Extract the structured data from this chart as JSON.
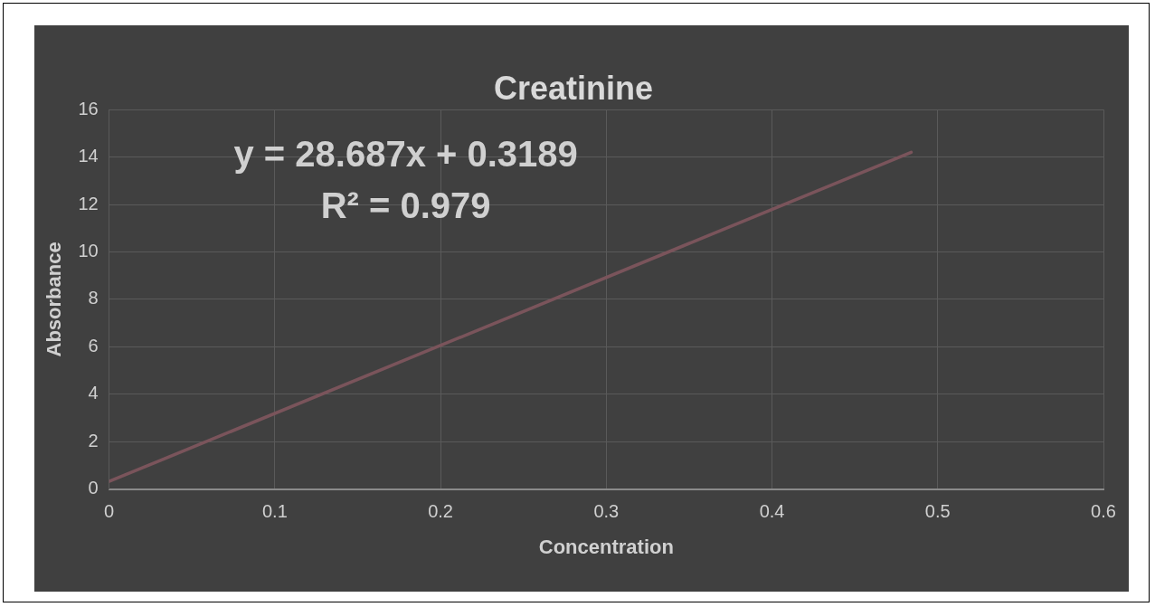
{
  "chart_data": {
    "type": "line",
    "title": "Creatinine",
    "xlabel": "Concentration",
    "ylabel": "Absorbance",
    "annotations": [
      "y = 28.687x + 0.3189",
      "R² = 0.979"
    ],
    "series": [
      {
        "color": "#7a545b",
        "x": [
          0,
          0.484
        ],
        "values": [
          0.32,
          14.2
        ]
      }
    ],
    "xlim": [
      0,
      0.6
    ],
    "xticks": [
      0,
      0.1,
      0.2,
      0.3,
      0.4,
      0.5,
      0.6
    ],
    "ylim": [
      0,
      16
    ],
    "yticks": [
      0,
      2,
      4,
      6,
      8,
      10,
      12,
      14,
      16
    ],
    "grid": true,
    "legend": false,
    "marker": "none",
    "line_style": "solid"
  }
}
